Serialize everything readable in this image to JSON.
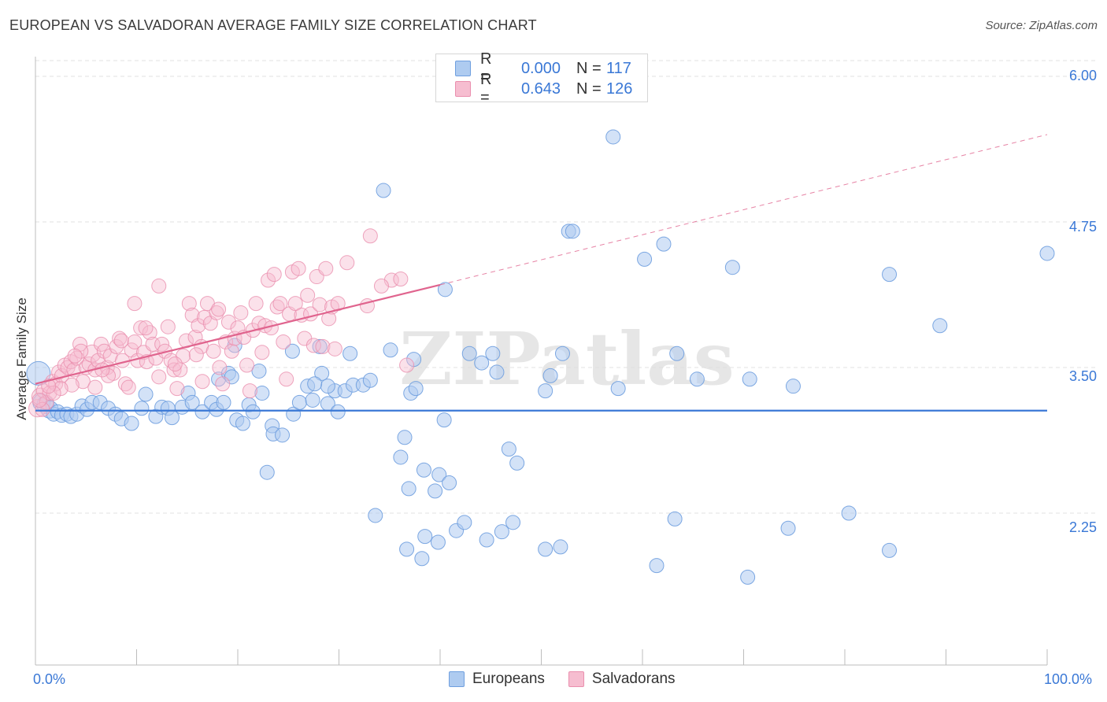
{
  "header": {
    "title": "EUROPEAN VS SALVADORAN AVERAGE FAMILY SIZE CORRELATION CHART",
    "source": "Source: ZipAtlas.com"
  },
  "legend_top": [
    {
      "r_label": "R =",
      "r_value": "0.000",
      "n_label": "N =",
      "n_value": "117"
    },
    {
      "r_label": "R =",
      "r_value": "0.643",
      "n_label": "N =",
      "n_value": "126"
    }
  ],
  "legend_bottom": [
    {
      "label": "Europeans"
    },
    {
      "label": "Salvadorans"
    }
  ],
  "axes": {
    "ylabel": "Average Family Size",
    "x_min_label": "0.0%",
    "x_max_label": "100.0%",
    "y_ticks": [
      "6.00",
      "4.75",
      "3.50",
      "2.25"
    ]
  },
  "watermark": "ZIPatlas",
  "colors": {
    "europeans_fill": "#aecbf0",
    "europeans_stroke": "#6f9fdf",
    "europeans_line": "#3a78d6",
    "salvadorans_fill": "#f6bdd0",
    "salvadorans_stroke": "#ea8fae",
    "salvadorans_line": "#e0648e",
    "tick_label": "#3a78d6",
    "grid": "#e0e0e0"
  },
  "chart_data": {
    "type": "scatter",
    "title": "EUROPEAN VS SALVADORAN AVERAGE FAMILY SIZE CORRELATION CHART",
    "xlabel": "",
    "ylabel": "Average Family Size",
    "xlim": [
      0,
      100
    ],
    "ylim": [
      1.25,
      6.25
    ],
    "y_ticks": [
      2.25,
      3.5,
      4.75,
      6.0
    ],
    "x_tick_labels": [
      "0.0%",
      "100.0%"
    ],
    "grid": true,
    "legend_position": "top-center",
    "series": [
      {
        "name": "Europeans",
        "R": 0.0,
        "N": 117,
        "trend": {
          "x": [
            0,
            100
          ],
          "y": [
            3.13,
            3.13
          ],
          "style": "solid"
        },
        "points": [
          [
            0.3,
            3.45
          ],
          [
            0.6,
            3.2
          ],
          [
            1,
            3.18
          ],
          [
            1.4,
            3.14
          ],
          [
            1.8,
            3.1
          ],
          [
            2.2,
            3.12
          ],
          [
            2.6,
            3.09
          ],
          [
            3.1,
            3.1
          ],
          [
            3.5,
            3.08
          ],
          [
            4.1,
            3.1
          ],
          [
            4.6,
            3.17
          ],
          [
            5.1,
            3.14
          ],
          [
            5.6,
            3.2
          ],
          [
            6.4,
            3.2
          ],
          [
            7.2,
            3.15
          ],
          [
            7.9,
            3.1
          ],
          [
            8.5,
            3.06
          ],
          [
            9.5,
            3.02
          ],
          [
            10.5,
            3.15
          ],
          [
            10.9,
            3.27
          ],
          [
            11.9,
            3.08
          ],
          [
            12.5,
            3.16
          ],
          [
            13.1,
            3.15
          ],
          [
            13.5,
            3.07
          ],
          [
            14.5,
            3.16
          ],
          [
            15.1,
            3.28
          ],
          [
            15.5,
            3.2
          ],
          [
            16.5,
            3.12
          ],
          [
            17.4,
            3.2
          ],
          [
            17.9,
            3.14
          ],
          [
            18.1,
            3.4
          ],
          [
            18.6,
            3.2
          ],
          [
            19.1,
            3.45
          ],
          [
            19.4,
            3.42
          ],
          [
            19.7,
            3.69
          ],
          [
            19.9,
            3.05
          ],
          [
            20.5,
            3.02
          ],
          [
            21.1,
            3.18
          ],
          [
            21.5,
            3.12
          ],
          [
            22.1,
            3.47
          ],
          [
            22.4,
            3.28
          ],
          [
            22.9,
            2.6
          ],
          [
            23.4,
            3.0
          ],
          [
            23.5,
            2.93
          ],
          [
            24.4,
            2.92
          ],
          [
            25.4,
            3.64
          ],
          [
            25.5,
            3.1
          ],
          [
            26.1,
            3.2
          ],
          [
            26.9,
            3.34
          ],
          [
            27.4,
            3.22
          ],
          [
            28.1,
            3.68
          ],
          [
            28.3,
            3.45
          ],
          [
            28.9,
            3.19
          ],
          [
            29.6,
            3.3
          ],
          [
            29.9,
            3.12
          ],
          [
            30.6,
            3.3
          ],
          [
            31.1,
            3.62
          ],
          [
            31.4,
            3.35
          ],
          [
            32.4,
            3.35
          ],
          [
            33.1,
            3.39
          ],
          [
            34.4,
            5.02
          ],
          [
            35.1,
            3.65
          ],
          [
            37.1,
            3.28
          ],
          [
            36.5,
            2.9
          ],
          [
            36.1,
            2.73
          ],
          [
            37.4,
            3.57
          ],
          [
            36.9,
            2.46
          ],
          [
            38.4,
            2.62
          ],
          [
            39.5,
            2.44
          ],
          [
            39.9,
            2.58
          ],
          [
            40.4,
            3.05
          ],
          [
            40.5,
            4.17
          ],
          [
            40.9,
            2.51
          ],
          [
            33.6,
            2.23
          ],
          [
            38.5,
            2.05
          ],
          [
            39.8,
            2.0
          ],
          [
            41.6,
            2.1
          ],
          [
            42.4,
            2.17
          ],
          [
            44.6,
            2.02
          ],
          [
            46.1,
            2.09
          ],
          [
            47.2,
            2.17
          ],
          [
            47.6,
            2.68
          ],
          [
            45.6,
            3.46
          ],
          [
            44.1,
            3.54
          ],
          [
            45.2,
            3.62
          ],
          [
            42.9,
            3.62
          ],
          [
            46.8,
            2.8
          ],
          [
            36.7,
            1.94
          ],
          [
            38.2,
            1.86
          ],
          [
            50.4,
            3.3
          ],
          [
            52.1,
            3.62
          ],
          [
            50.9,
            3.43
          ],
          [
            51.9,
            1.96
          ],
          [
            50.4,
            1.94
          ],
          [
            52.7,
            4.67
          ],
          [
            53.1,
            4.67
          ],
          [
            57.1,
            5.48
          ],
          [
            57.6,
            3.32
          ],
          [
            60.2,
            4.43
          ],
          [
            62.1,
            4.56
          ],
          [
            63.2,
            2.2
          ],
          [
            63.4,
            3.62
          ],
          [
            61.4,
            1.8
          ],
          [
            65.4,
            3.4
          ],
          [
            68.9,
            4.36
          ],
          [
            70.4,
            1.7
          ],
          [
            70.6,
            3.4
          ],
          [
            74.4,
            2.12
          ],
          [
            74.9,
            3.34
          ],
          [
            80.4,
            2.25
          ],
          [
            84.4,
            4.3
          ],
          [
            84.4,
            1.93
          ],
          [
            89.4,
            3.86
          ],
          [
            100,
            4.48
          ],
          [
            28.9,
            3.34
          ],
          [
            27.6,
            3.36
          ],
          [
            37.6,
            3.32
          ]
        ]
      },
      {
        "name": "Salvadorans",
        "R": 0.643,
        "N": 126,
        "trend": {
          "x": [
            0,
            40
          ],
          "y": [
            3.36,
            4.21
          ],
          "style": "solid",
          "extended_x": [
            40,
            100
          ],
          "extended_y": [
            4.21,
            5.5
          ]
        },
        "points": [
          [
            0.2,
            3.15
          ],
          [
            0.5,
            3.25
          ],
          [
            0.8,
            3.3
          ],
          [
            1.1,
            3.2
          ],
          [
            1.4,
            3.28
          ],
          [
            1.7,
            3.38
          ],
          [
            2.0,
            3.36
          ],
          [
            2.3,
            3.46
          ],
          [
            2.6,
            3.43
          ],
          [
            2.9,
            3.52
          ],
          [
            3.2,
            3.5
          ],
          [
            3.5,
            3.55
          ],
          [
            3.8,
            3.48
          ],
          [
            4.1,
            3.58
          ],
          [
            4.4,
            3.7
          ],
          [
            4.7,
            3.38
          ],
          [
            5.0,
            3.5
          ],
          [
            5.3,
            3.53
          ],
          [
            5.6,
            3.62
          ],
          [
            5.9,
            3.48
          ],
          [
            6.2,
            3.56
          ],
          [
            6.5,
            3.7
          ],
          [
            6.8,
            3.64
          ],
          [
            7.1,
            3.5
          ],
          [
            7.4,
            3.6
          ],
          [
            7.7,
            3.45
          ],
          [
            8.0,
            3.68
          ],
          [
            8.3,
            3.75
          ],
          [
            8.6,
            3.56
          ],
          [
            8.9,
            3.36
          ],
          [
            9.2,
            3.33
          ],
          [
            9.5,
            3.65
          ],
          [
            9.8,
            3.72
          ],
          [
            10.1,
            3.56
          ],
          [
            10.4,
            3.84
          ],
          [
            10.7,
            3.63
          ],
          [
            11.0,
            3.55
          ],
          [
            11.3,
            3.8
          ],
          [
            11.6,
            3.7
          ],
          [
            11.9,
            3.58
          ],
          [
            12.2,
            3.42
          ],
          [
            12.5,
            3.7
          ],
          [
            12.8,
            3.64
          ],
          [
            13.1,
            3.85
          ],
          [
            13.4,
            3.56
          ],
          [
            13.7,
            3.48
          ],
          [
            14.0,
            3.32
          ],
          [
            14.3,
            3.48
          ],
          [
            14.6,
            3.6
          ],
          [
            14.9,
            3.73
          ],
          [
            15.2,
            4.05
          ],
          [
            15.5,
            3.95
          ],
          [
            15.8,
            3.76
          ],
          [
            16.1,
            3.86
          ],
          [
            16.4,
            3.68
          ],
          [
            16.7,
            3.93
          ],
          [
            17.0,
            4.05
          ],
          [
            17.3,
            3.88
          ],
          [
            17.6,
            3.64
          ],
          [
            17.9,
            3.97
          ],
          [
            18.2,
            3.5
          ],
          [
            18.5,
            3.36
          ],
          [
            18.8,
            3.72
          ],
          [
            19.1,
            3.89
          ],
          [
            19.4,
            3.64
          ],
          [
            19.7,
            3.75
          ],
          [
            20.0,
            3.84
          ],
          [
            20.3,
            3.97
          ],
          [
            20.6,
            3.76
          ],
          [
            20.9,
            3.52
          ],
          [
            21.2,
            3.3
          ],
          [
            21.5,
            3.82
          ],
          [
            21.8,
            4.05
          ],
          [
            22.1,
            3.88
          ],
          [
            22.4,
            3.63
          ],
          [
            22.7,
            3.86
          ],
          [
            23.0,
            4.25
          ],
          [
            23.3,
            3.84
          ],
          [
            23.6,
            4.3
          ],
          [
            23.9,
            4.02
          ],
          [
            24.2,
            4.05
          ],
          [
            24.5,
            3.72
          ],
          [
            24.8,
            3.4
          ],
          [
            25.1,
            3.96
          ],
          [
            25.4,
            4.32
          ],
          [
            25.7,
            4.05
          ],
          [
            26.0,
            4.35
          ],
          [
            26.3,
            3.95
          ],
          [
            26.6,
            3.75
          ],
          [
            26.9,
            4.12
          ],
          [
            27.2,
            3.96
          ],
          [
            27.5,
            3.69
          ],
          [
            27.8,
            4.28
          ],
          [
            28.1,
            4.04
          ],
          [
            28.4,
            3.68
          ],
          [
            28.7,
            4.35
          ],
          [
            29.0,
            3.92
          ],
          [
            29.3,
            4.02
          ],
          [
            29.6,
            3.66
          ],
          [
            29.9,
            4.05
          ],
          [
            30.8,
            4.4
          ],
          [
            32.8,
            4.03
          ],
          [
            35.2,
            4.25
          ],
          [
            36.1,
            4.26
          ],
          [
            36.7,
            3.52
          ],
          [
            33.1,
            4.63
          ],
          [
            34.2,
            4.2
          ],
          [
            18.1,
            4.0
          ],
          [
            16.5,
            3.38
          ],
          [
            12.2,
            4.2
          ],
          [
            9.8,
            4.05
          ],
          [
            7.2,
            3.43
          ],
          [
            5.9,
            3.33
          ],
          [
            4.5,
            3.64
          ],
          [
            3.6,
            3.35
          ],
          [
            2.5,
            3.32
          ],
          [
            1.8,
            3.28
          ],
          [
            1.3,
            3.34
          ],
          [
            0.7,
            3.14
          ],
          [
            0.4,
            3.22
          ],
          [
            3.9,
            3.6
          ],
          [
            6.6,
            3.48
          ],
          [
            8.5,
            3.73
          ],
          [
            10.9,
            3.84
          ],
          [
            13.8,
            3.53
          ],
          [
            15.9,
            3.61
          ]
        ]
      }
    ]
  }
}
